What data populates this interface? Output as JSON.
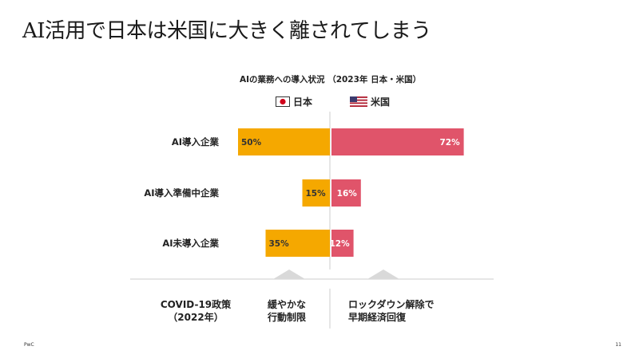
{
  "slide": {
    "title": "AI活用で日本は米国に大きく離されてしまう",
    "brand": "PwC",
    "page_number": "11"
  },
  "colors": {
    "japan": "#F5A800",
    "us": "#E0546A",
    "divider": "#cccccc",
    "arrow": "#d9d9d9"
  },
  "icons": {
    "japan": "japan-flag-icon",
    "us": "us-flag-icon"
  },
  "chart_data": {
    "type": "bar",
    "orientation": "horizontal-diverging",
    "title": "AIの業務への導入状況 （2023年 日本・米国）",
    "categories": [
      "AI導入企業",
      "AI導入準備中企業",
      "AI未導入企業"
    ],
    "series": [
      {
        "name": "日本",
        "values": [
          50,
          15,
          35
        ],
        "labels": [
          "50%",
          "15%",
          "35%"
        ],
        "direction": "left"
      },
      {
        "name": "米国",
        "values": [
          72,
          16,
          12
        ],
        "labels": [
          "72%",
          "16%",
          "12%"
        ],
        "direction": "right"
      }
    ],
    "unit": "%",
    "grid": false,
    "legend_position": "top"
  },
  "footer": {
    "heading_line1": "COVID-19政策",
    "heading_line2": "（2022年）",
    "japan_line1": "緩やかな",
    "japan_line2": "行動制限",
    "us_line1": "ロックダウン解除で",
    "us_line2": "早期経済回復"
  }
}
